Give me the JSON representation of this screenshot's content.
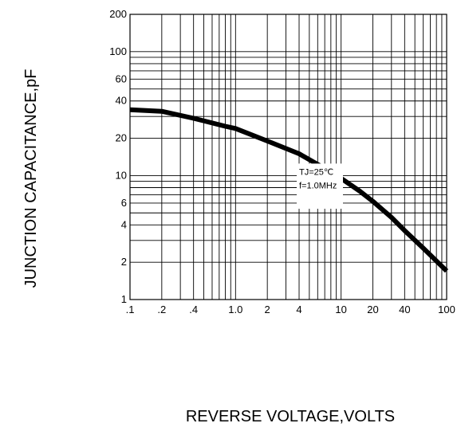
{
  "chart_data": {
    "type": "line",
    "xlabel": "REVERSE VOLTAGE,VOLTS",
    "ylabel": "JUNCTION CAPACITANCE,pF",
    "x_scale": "log",
    "y_scale": "log",
    "xlim": [
      0.1,
      100
    ],
    "ylim": [
      1,
      200
    ],
    "grid": true,
    "x_ticks": [
      {
        "value": 0.1,
        "label": ".1"
      },
      {
        "value": 0.2,
        "label": ".2"
      },
      {
        "value": 0.4,
        "label": ".4"
      },
      {
        "value": 1,
        "label": "1.0"
      },
      {
        "value": 2,
        "label": "2"
      },
      {
        "value": 4,
        "label": "4"
      },
      {
        "value": 10,
        "label": "10"
      },
      {
        "value": 20,
        "label": "20"
      },
      {
        "value": 40,
        "label": "40"
      },
      {
        "value": 100,
        "label": "100"
      }
    ],
    "y_ticks": [
      {
        "value": 1,
        "label": "1"
      },
      {
        "value": 2,
        "label": "2"
      },
      {
        "value": 4,
        "label": "4"
      },
      {
        "value": 6,
        "label": "6"
      },
      {
        "value": 10,
        "label": "10"
      },
      {
        "value": 20,
        "label": "20"
      },
      {
        "value": 40,
        "label": "40"
      },
      {
        "value": 60,
        "label": "60"
      },
      {
        "value": 100,
        "label": "100"
      },
      {
        "value": 200,
        "label": "200"
      }
    ],
    "x_grid": [
      0.1,
      0.2,
      0.3,
      0.4,
      0.5,
      0.6,
      0.7,
      0.8,
      0.9,
      1,
      2,
      3,
      4,
      5,
      6,
      7,
      8,
      9,
      10,
      20,
      30,
      40,
      50,
      60,
      70,
      80,
      90,
      100
    ],
    "y_grid": [
      1,
      2,
      3,
      4,
      5,
      6,
      7,
      8,
      9,
      10,
      20,
      30,
      40,
      50,
      60,
      70,
      80,
      90,
      100,
      200
    ],
    "series": [
      {
        "x": [
          0.1,
          0.2,
          0.4,
          0.8,
          1.0,
          2,
          4,
          6,
          10,
          15,
          20,
          30,
          40,
          60,
          100
        ],
        "y": [
          34,
          33,
          29,
          25,
          24,
          19,
          15,
          12.3,
          9.5,
          7.5,
          6.2,
          4.6,
          3.6,
          2.6,
          1.7
        ]
      }
    ],
    "annotations": [
      "TJ=25℃",
      "f=1.0MHz"
    ]
  }
}
